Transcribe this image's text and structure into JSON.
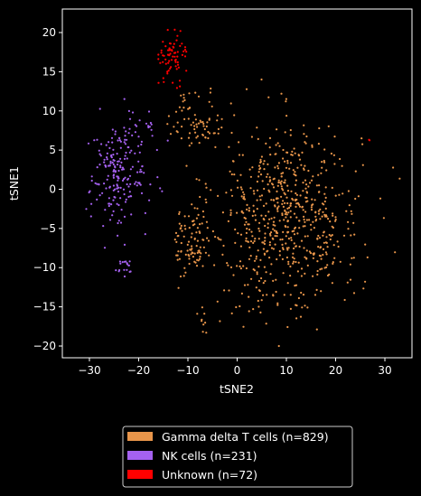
{
  "chart_data": {
    "type": "scatter",
    "title": "",
    "xlabel": "tSNE2",
    "ylabel": "tSNE1",
    "xlim": [
      -35.5,
      35.5
    ],
    "ylim": [
      -21.5,
      23
    ],
    "xticks": [
      -30,
      -20,
      -10,
      0,
      10,
      20,
      30
    ],
    "yticks": [
      -20,
      -15,
      -10,
      -5,
      0,
      5,
      10,
      15,
      20
    ],
    "grid": false,
    "legend": {
      "placement": "bottom-center"
    },
    "series": [
      {
        "name": "Gamma delta T cells (n=829)",
        "color": "#e8954a",
        "count": 829,
        "clusters": [
          {
            "x": 10,
            "y": -3,
            "sx": 10,
            "sy": 7.5,
            "n": 640
          },
          {
            "x": -9,
            "y": -7,
            "sx": 2.5,
            "sy": 3,
            "n": 90
          },
          {
            "x": -8,
            "y": 9,
            "sx": 4,
            "sy": 2.5,
            "n": 70
          },
          {
            "x": -7,
            "y": -17,
            "sx": 0.8,
            "sy": 1,
            "n": 8
          },
          {
            "x": 4,
            "y": -15,
            "sx": 7,
            "sy": 2,
            "n": 21
          }
        ]
      },
      {
        "name": "NK cells (n=231)",
        "color": "#a561f0",
        "count": 231,
        "clusters": [
          {
            "x": -24,
            "y": 2,
            "sx": 4,
            "sy": 4.5,
            "n": 200
          },
          {
            "x": -23,
            "y": -10,
            "sx": 1.5,
            "sy": 1,
            "n": 18
          },
          {
            "x": -18,
            "y": 7,
            "sx": 2.5,
            "sy": 2,
            "n": 13
          }
        ]
      },
      {
        "name": "Unknown (n=72)",
        "color": "#ff0000",
        "count": 72,
        "clusters": [
          {
            "x": -13,
            "y": 17,
            "sx": 1.8,
            "sy": 2,
            "n": 70
          },
          {
            "x": 27,
            "y": 6.3,
            "sx": 0.3,
            "sy": 0.3,
            "n": 2
          }
        ]
      }
    ]
  }
}
